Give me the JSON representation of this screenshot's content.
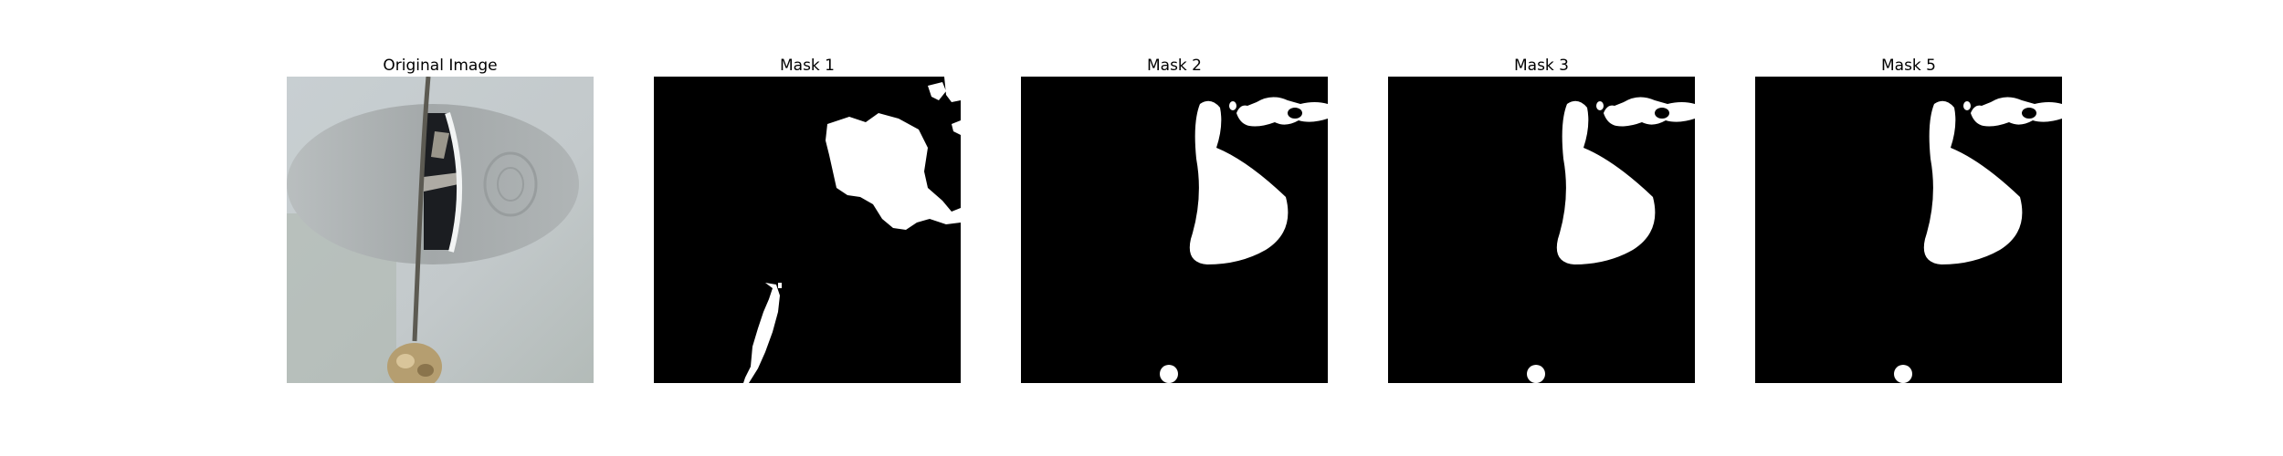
{
  "figure": {
    "panels": [
      {
        "id": "original",
        "title": "Original Image"
      },
      {
        "id": "mask1",
        "title": "Mask 1"
      },
      {
        "id": "mask2",
        "title": "Mask 2"
      },
      {
        "id": "mask3",
        "title": "Mask 3"
      },
      {
        "id": "mask5",
        "title": "Mask 5"
      }
    ],
    "colors": {
      "background": "#ffffff",
      "mask_background": "#000000",
      "mask_foreground": "#ffffff",
      "wall": "#c5cbcd",
      "disc": "#a9aeaf"
    }
  }
}
